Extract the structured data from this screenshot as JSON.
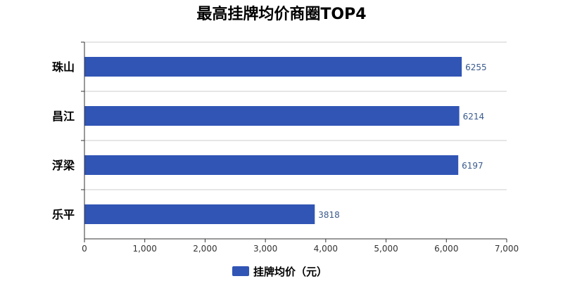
{
  "chart_data": {
    "type": "bar",
    "orientation": "horizontal",
    "title": "最高挂牌均价商圈TOP4",
    "categories": [
      "珠山",
      "昌江",
      "浮梁",
      "乐平"
    ],
    "series": [
      {
        "name": "挂牌均价（元）",
        "values": [
          6255,
          6214,
          6197,
          3818
        ],
        "color": "#3155b5"
      }
    ],
    "xlim": [
      0,
      7000
    ],
    "x_ticks": [
      0,
      1000,
      2000,
      3000,
      4000,
      5000,
      6000,
      7000
    ],
    "x_tick_labels": [
      "0",
      "1,000",
      "2,000",
      "3,000",
      "4,000",
      "5,000",
      "6,000",
      "7,000"
    ],
    "grid": true,
    "legend_position": "bottom",
    "show_data_labels": true
  }
}
